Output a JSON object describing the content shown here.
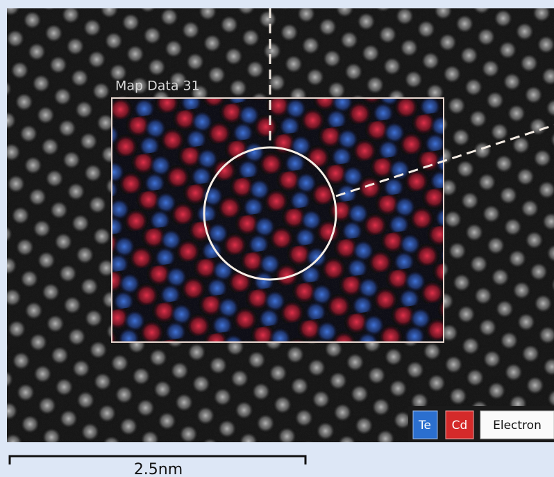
{
  "map": {
    "label": "Map Data 31"
  },
  "legend": {
    "items": [
      "Te",
      "Cd",
      "Electron"
    ]
  },
  "scale_bar": {
    "label": "2.5nm"
  }
}
